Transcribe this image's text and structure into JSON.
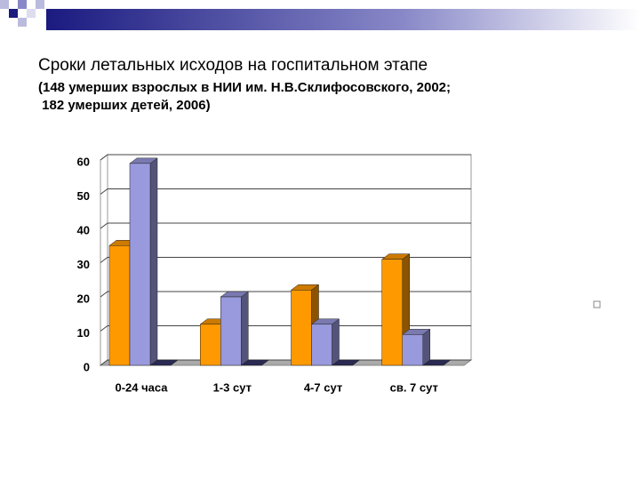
{
  "chart_data": {
    "type": "bar3d",
    "title": "Сроки летальных исходов на госпитальном этапе",
    "subtitle": [
      "(148 умерших взрослых в НИИ им. Н.В.Склифосовского, 2002;",
      " 182 умерших детей, 2006)"
    ],
    "categories": [
      "0-24 часа",
      "1-3 сут",
      "4-7 сут",
      "св. 7 сут"
    ],
    "series": [
      {
        "color": "#ff9900",
        "values": [
          35,
          12,
          22,
          31
        ]
      },
      {
        "color": "#9999dd",
        "values": [
          59,
          20,
          12,
          9
        ]
      },
      {
        "color": "#333366",
        "values": [
          0,
          0,
          0,
          0
        ]
      }
    ],
    "ylim": [
      0,
      60
    ],
    "yticks": [
      0,
      10,
      20,
      30,
      40,
      50,
      60
    ],
    "grid": true
  }
}
